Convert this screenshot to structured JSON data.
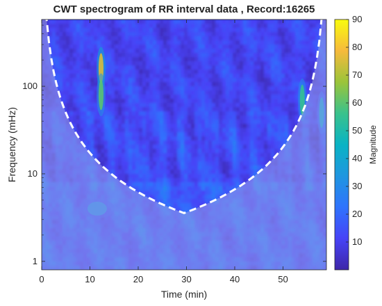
{
  "chart_data": {
    "type": "heatmap",
    "title": "CWT spectrogram of RR interval data , Record:16265",
    "xlabel": "Time (min)",
    "ylabel": "Frequency (mHz)",
    "xlim": [
      0,
      59
    ],
    "ylim": [
      0.8,
      580
    ],
    "y_scale": "log",
    "x_ticks": [
      0,
      10,
      20,
      30,
      40,
      50
    ],
    "y_ticks": [
      1,
      10,
      100
    ],
    "colormap": "parula",
    "colorbar": {
      "label": "Magnitude",
      "range": [
        0,
        90
      ],
      "ticks": [
        10,
        20,
        30,
        40,
        50,
        60,
        70,
        80,
        90
      ]
    },
    "cone_of_influence": {
      "style": "dashed",
      "color": "#ffffff"
    },
    "features": [
      {
        "time": 11.5,
        "freq": 4,
        "magnitude": 30
      },
      {
        "time": 12.3,
        "freq": 160,
        "magnitude": 75
      },
      {
        "time": 12.3,
        "freq": 80,
        "magnitude": 60
      },
      {
        "time": 54,
        "freq": 70,
        "magnitude": 55
      },
      {
        "time": 58,
        "freq": 50,
        "magnitude": 40
      }
    ]
  }
}
